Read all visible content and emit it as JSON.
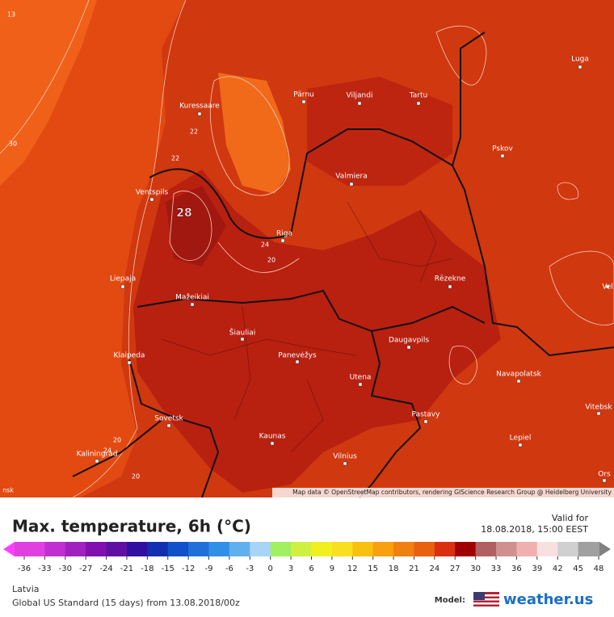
{
  "map": {
    "cities": [
      "Kuressaare",
      "Pärnu",
      "Viljandi",
      "Tartu",
      "Luga",
      "Pskov",
      "Valmiera",
      "Ventspils",
      "Riga",
      "Rēzekne",
      "Liepaja",
      "Mažeikiai",
      "Šiauliai",
      "Panevėžys",
      "Daugavpils",
      "Klaipeda",
      "Navapolatsk",
      "Utena",
      "Vitebsk",
      "Sovetsk",
      "Pastavy",
      "Kaunas",
      "Lepiel",
      "Kaliningrad",
      "Vilnius",
      "Ors",
      "Vel"
    ],
    "contour_labels": [
      "22",
      "22",
      "24",
      "20",
      "30",
      "20",
      "24",
      "20",
      "13",
      "nsk"
    ],
    "max_label": "28",
    "attribution": "Map data © OpenStreetMap contributors, rendering GIScience Research Group @ Heidelberg University"
  },
  "legend": {
    "title": "Max. temperature, 6h (°C)",
    "valid_label": "Valid for",
    "valid_time": "18.08.2018, 15:00 EEST",
    "ticks": [
      -36,
      -33,
      -30,
      -27,
      -24,
      -21,
      -18,
      -15,
      -12,
      -9,
      -6,
      -3,
      0,
      3,
      6,
      9,
      12,
      15,
      18,
      21,
      24,
      27,
      30,
      33,
      36,
      39,
      42,
      45,
      48
    ],
    "colors": [
      "#e040e0",
      "#c030d0",
      "#a020c0",
      "#8010b0",
      "#6010a0",
      "#3010a0",
      "#1030b0",
      "#1050c8",
      "#2070d8",
      "#3090e8",
      "#60b0f0",
      "#a8d4f8",
      "#a0f060",
      "#d0f040",
      "#f0f020",
      "#f8e020",
      "#f8c010",
      "#f8a010",
      "#f08010",
      "#e86010",
      "#d83010",
      "#a00000",
      "#b06060",
      "#d09090",
      "#f0b0b0",
      "#f8e0e0",
      "#d0d0d0",
      "#a0a0a0"
    ]
  },
  "footer": {
    "region": "Latvia",
    "model": "Global US Standard (15 days) from 13.08.2018/00z",
    "model_label": "Model:",
    "brand": "weather.us"
  }
}
